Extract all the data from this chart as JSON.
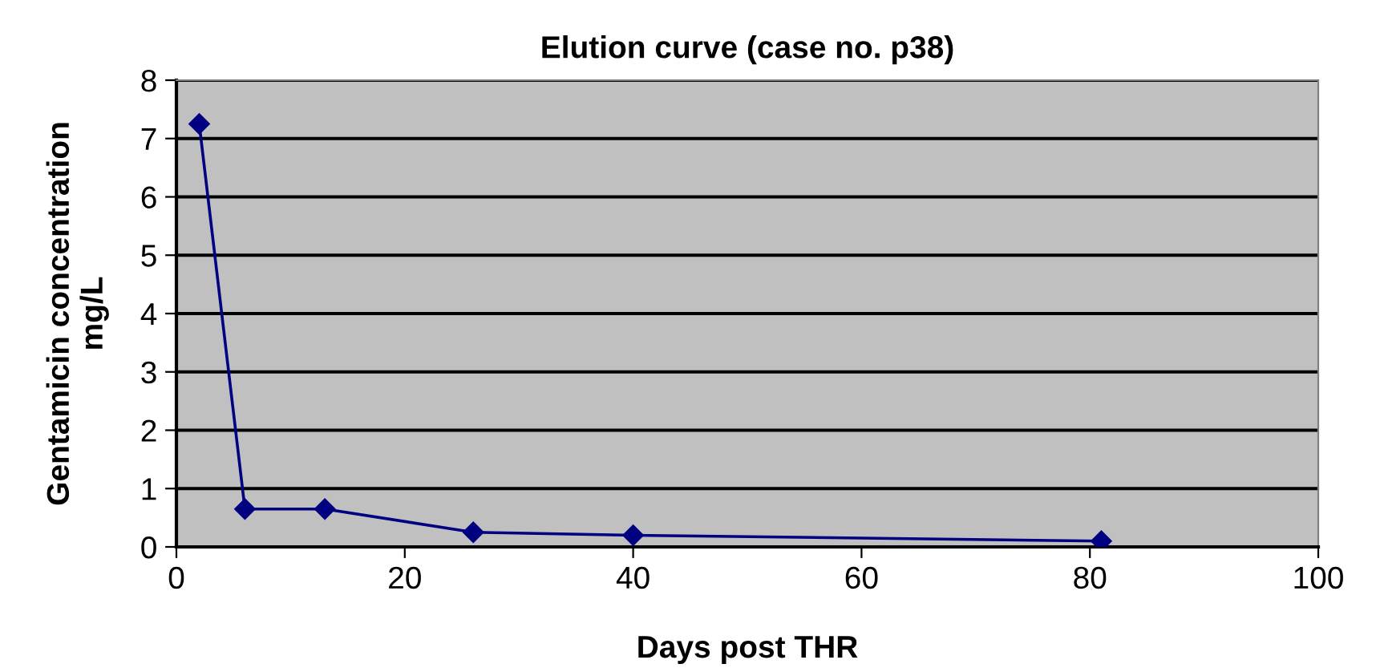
{
  "chart_data": {
    "type": "line",
    "title": "Elution curve (case no. p38)",
    "xlabel": "Days post THR",
    "ylabel": "Gentamicin concentration\nmg/L",
    "series": [
      {
        "color": "#000080",
        "x": [
          2,
          6,
          13,
          26,
          40,
          81
        ],
        "values": [
          7.25,
          0.65,
          0.65,
          0.25,
          0.2,
          0.1
        ]
      }
    ],
    "xlim": [
      0,
      100
    ],
    "xticks": [
      0,
      20,
      40,
      60,
      80,
      100
    ],
    "ylim": [
      0,
      8
    ],
    "yticks": [
      0,
      1,
      2,
      3,
      4,
      5,
      6,
      7,
      8
    ],
    "grid": "y",
    "marker": "diamond",
    "line_style": "solid",
    "legend": false
  }
}
